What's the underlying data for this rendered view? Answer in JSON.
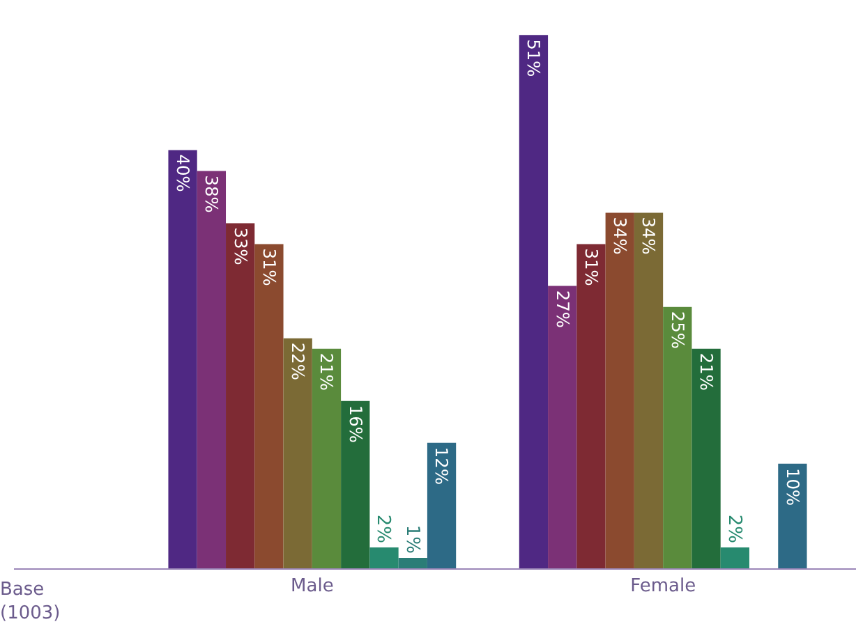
{
  "chart_data": {
    "type": "bar",
    "categories": [
      "Male",
      "Female"
    ],
    "series": [
      {
        "color": "#4f2883",
        "values": [
          40,
          51
        ],
        "value_labels": [
          "40%",
          "51%"
        ]
      },
      {
        "color": "#7b3176",
        "values": [
          38,
          27
        ],
        "value_labels": [
          "38%",
          "27%"
        ]
      },
      {
        "color": "#7e2a33",
        "values": [
          33,
          31
        ],
        "value_labels": [
          "33%",
          "31%"
        ]
      },
      {
        "color": "#8b4a2f",
        "values": [
          31,
          34
        ],
        "value_labels": [
          "31%",
          "34%"
        ]
      },
      {
        "color": "#7b6a35",
        "values": [
          22,
          34
        ],
        "value_labels": [
          "22%",
          "34%"
        ]
      },
      {
        "color": "#5a8b3c",
        "values": [
          21,
          25
        ],
        "value_labels": [
          "21%",
          "25%"
        ]
      },
      {
        "color": "#236d3b",
        "values": [
          16,
          21
        ],
        "value_labels": [
          "16%",
          "21%"
        ]
      },
      {
        "color": "#278a6f",
        "values": [
          2,
          2
        ],
        "value_labels": [
          "2%",
          "2%"
        ]
      },
      {
        "color": "#2b7d77",
        "values": [
          1,
          null
        ],
        "value_labels": [
          "1%",
          null
        ]
      },
      {
        "color": "#2d6a86",
        "values": [
          12,
          10
        ],
        "value_labels": [
          "12%",
          "10%"
        ]
      }
    ],
    "annotations": [
      "Base\n(1003)"
    ]
  }
}
